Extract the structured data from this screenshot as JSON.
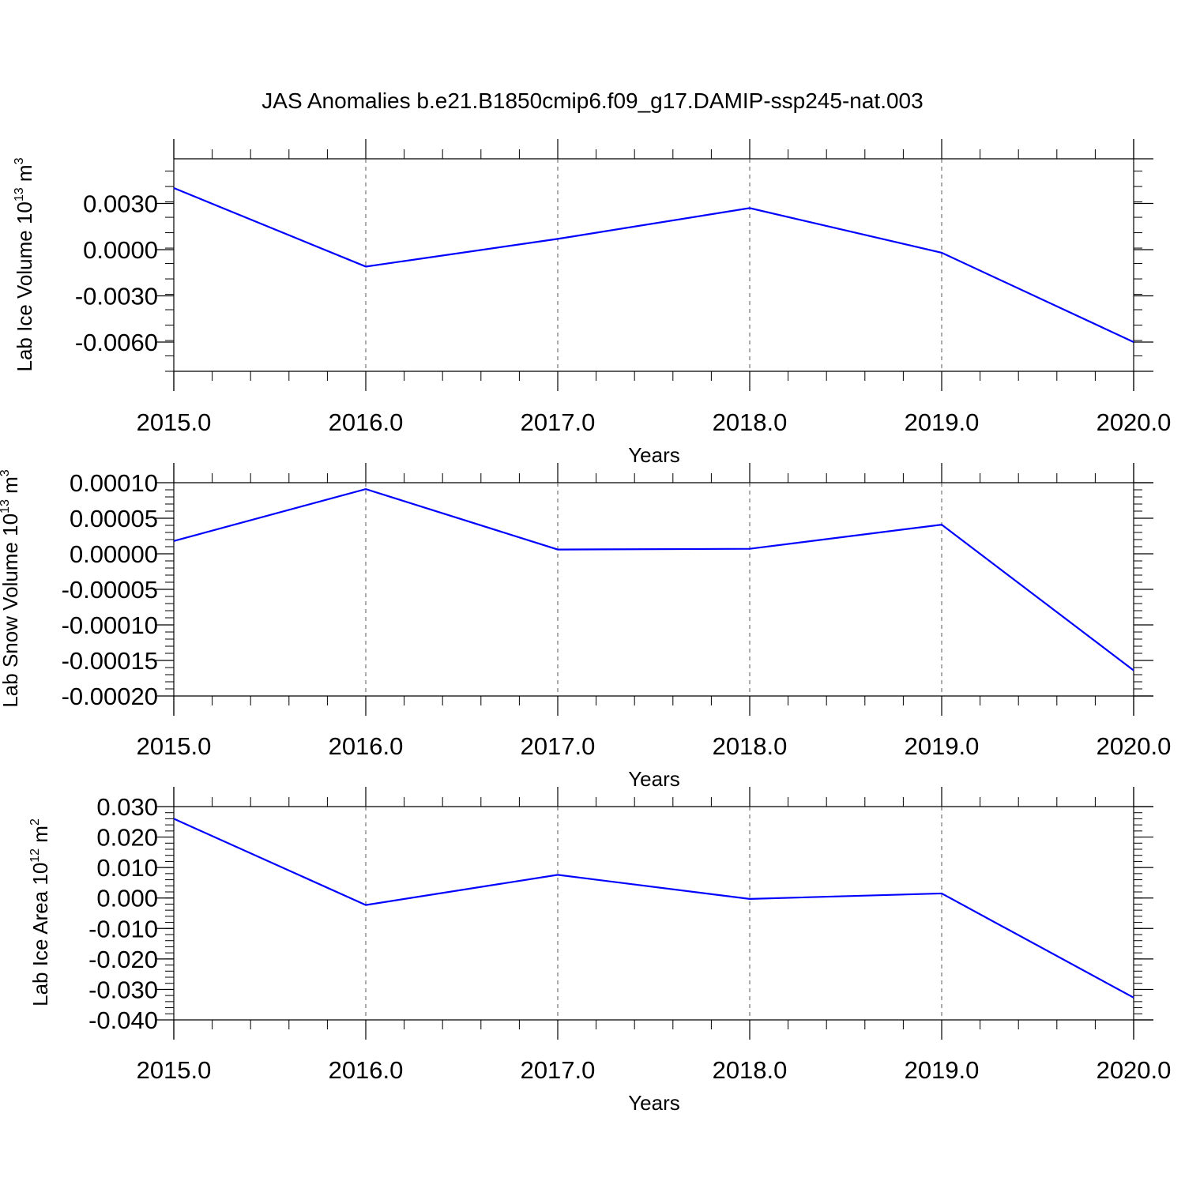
{
  "page": {
    "title": "JAS Anomalies b.e21.B1850cmip6.f09_g17.DAMIP-ssp245-nat.003"
  },
  "colors": {
    "line": "#0000ff",
    "axis": "#000000",
    "grid": "#555555"
  },
  "chart_data": [
    {
      "type": "line",
      "xlabel": "Years",
      "ylabel": {
        "main": "Lab Ice Volume 10",
        "exp": "13",
        "unit": " m",
        "unit_exp": "3"
      },
      "x": [
        2015,
        2016,
        2017,
        2018,
        2019,
        2020
      ],
      "series": [
        {
          "values": [
            0.004,
            -0.0011,
            0.0007,
            0.0027,
            -0.0002,
            -0.006
          ]
        }
      ],
      "xlim": [
        2015,
        2020
      ],
      "ylim": [
        -0.0079,
        0.0059
      ],
      "yticks": [
        0.003,
        0.0,
        -0.003,
        -0.006
      ],
      "ytick_labels": [
        "0.0030",
        "0.0000",
        "-0.0030",
        "-0.0060"
      ],
      "xticks": [
        2015,
        2016,
        2017,
        2018,
        2019,
        2020
      ],
      "xtick_labels": [
        "2015.0",
        "2016.0",
        "2017.0",
        "2018.0",
        "2019.0",
        "2020.0"
      ],
      "grid": "vertical dashed at x ticks"
    },
    {
      "type": "line",
      "xlabel": "Years",
      "ylabel": {
        "main": "Lab Snow Volume 10",
        "exp": "13",
        "unit": " m",
        "unit_exp": "3"
      },
      "x": [
        2015,
        2016,
        2017,
        2018,
        2019,
        2020
      ],
      "series": [
        {
          "values": [
            1.8e-05,
            9.1e-05,
            6e-06,
            7e-06,
            4.1e-05,
            -0.000164
          ]
        }
      ],
      "xlim": [
        2015,
        2020
      ],
      "ylim": [
        -0.0002,
        0.0001
      ],
      "yticks": [
        0.0001,
        5e-05,
        0.0,
        -5e-05,
        -0.0001,
        -0.00015,
        -0.0002
      ],
      "ytick_labels": [
        "0.00010",
        "0.00005",
        "0.00000",
        "-0.00005",
        "-0.00010",
        "-0.00015",
        "-0.00020"
      ],
      "xticks": [
        2015,
        2016,
        2017,
        2018,
        2019,
        2020
      ],
      "xtick_labels": [
        "2015.0",
        "2016.0",
        "2017.0",
        "2018.0",
        "2019.0",
        "2020.0"
      ],
      "grid": "vertical dashed at x ticks"
    },
    {
      "type": "line",
      "xlabel": "Years",
      "ylabel": {
        "main": "Lab Ice Area 10",
        "exp": "12",
        "unit": " m",
        "unit_exp": "2"
      },
      "x": [
        2015,
        2016,
        2017,
        2018,
        2019,
        2020
      ],
      "series": [
        {
          "values": [
            0.026,
            -0.0023,
            0.0076,
            -0.0003,
            0.0015,
            -0.0327
          ]
        }
      ],
      "xlim": [
        2015,
        2020
      ],
      "ylim": [
        -0.04,
        0.03
      ],
      "yticks": [
        0.03,
        0.02,
        0.01,
        0.0,
        -0.01,
        -0.02,
        -0.03,
        -0.04
      ],
      "ytick_labels": [
        "0.030",
        "0.020",
        "0.010",
        "0.000",
        "-0.010",
        "-0.020",
        "-0.030",
        "-0.040"
      ],
      "xticks": [
        2015,
        2016,
        2017,
        2018,
        2019,
        2020
      ],
      "xtick_labels": [
        "2015.0",
        "2016.0",
        "2017.0",
        "2018.0",
        "2019.0",
        "2020.0"
      ],
      "grid": "vertical dashed at x ticks"
    }
  ]
}
